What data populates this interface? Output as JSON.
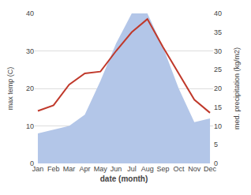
{
  "chart_data": {
    "type": "line",
    "categories": [
      "Jan",
      "Feb",
      "Mar",
      "Apr",
      "May",
      "Jun",
      "Jul",
      "Aug",
      "Sep",
      "Oct",
      "Nov",
      "Dec"
    ],
    "xlabel": "date (month)",
    "ylabel": "max temp (C)",
    "y2label": "med. precipitation (kg/m2)",
    "series": [
      {
        "type": "area",
        "color": "#b3c6e8",
        "axis": "y2",
        "values": [
          8,
          9,
          10,
          13,
          22,
          32,
          40,
          40,
          31,
          20,
          11,
          12
        ]
      },
      {
        "type": "line",
        "color": "#c0392b",
        "values": [
          14,
          15.5,
          21,
          24,
          24.5,
          30,
          35,
          38.5,
          31,
          24,
          17,
          13.5
        ]
      }
    ],
    "ylim": [
      0,
      40
    ],
    "yticks": [
      0,
      10,
      20,
      30,
      40
    ],
    "y2lim": [
      0,
      40
    ],
    "y2ticks": [
      0,
      5,
      10,
      15,
      20,
      25,
      30,
      35,
      40
    ],
    "grid": true
  }
}
